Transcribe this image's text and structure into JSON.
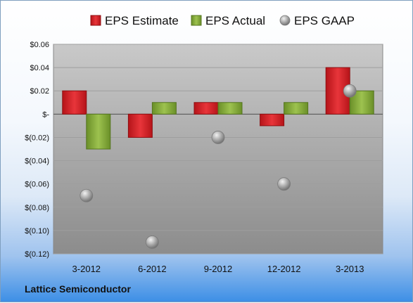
{
  "company": "Lattice Semiconductor",
  "chart_data": {
    "type": "bar",
    "categories": [
      "3-2012",
      "6-2012",
      "9-2012",
      "12-2012",
      "3-2013"
    ],
    "series": [
      {
        "name": "EPS Estimate",
        "kind": "bar",
        "color": "#d9262b",
        "values": [
          0.02,
          -0.02,
          0.01,
          -0.01,
          0.04
        ]
      },
      {
        "name": "EPS Actual",
        "kind": "bar",
        "color": "#86ad3c",
        "values": [
          -0.03,
          0.01,
          0.01,
          0.01,
          0.02
        ]
      },
      {
        "name": "EPS GAAP",
        "kind": "marker",
        "color": "#a8a8a8",
        "values": [
          -0.07,
          -0.11,
          -0.02,
          -0.06,
          0.02
        ]
      }
    ],
    "ylim": [
      -0.12,
      0.06
    ],
    "yticks": [
      0.06,
      0.04,
      0.02,
      0,
      -0.02,
      -0.04,
      -0.06,
      -0.08,
      -0.1,
      -0.12
    ],
    "ytick_labels": [
      "$0.06",
      "$0.04",
      "$0.02",
      "$-",
      "$(0.02)",
      "$(0.04)",
      "$(0.06)",
      "$(0.08)",
      "$(0.10)",
      "$(0.12)"
    ],
    "grid": true,
    "legend_position": "top"
  }
}
